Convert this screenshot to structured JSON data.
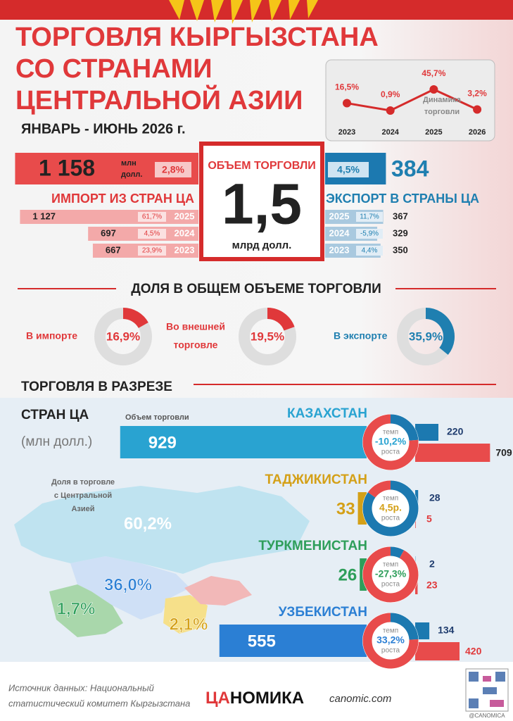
{
  "header": {
    "title_lines": [
      "ТОРГОВЛЯ КЫРГЫЗСТАНА",
      "СО СТРАНАМИ",
      "ЦЕНТРАЛЬНОЙ АЗИИ"
    ],
    "period": "ЯНВАРЬ - ИЮНЬ 2026 г."
  },
  "dynamics": {
    "label_lines": [
      "Динамика",
      "торговли"
    ],
    "x": [
      "2023",
      "2024",
      "2025",
      "2026"
    ],
    "values": [
      16.5,
      0.9,
      45.7,
      3.2
    ],
    "value_labels": [
      "16,5%",
      "0,9%",
      "45,7%",
      "3,2%"
    ]
  },
  "total": {
    "label": "ОБЪЕМ ТОРГОВЛИ",
    "value": "1,5",
    "unit": "млрд долл."
  },
  "imports": {
    "label": "ИМПОРТ ИЗ СТРАН ЦА",
    "unit_lines": [
      "млн",
      "долл."
    ],
    "current": {
      "value": 1158,
      "value_label": "1 158",
      "growth": "2,8%"
    },
    "history": [
      {
        "year": "2025",
        "value": 1127,
        "value_label": "1 127",
        "growth": "61,7%"
      },
      {
        "year": "2024",
        "value": 697,
        "growth": "4,5%"
      },
      {
        "year": "2023",
        "value": 667,
        "growth": "23,9%"
      }
    ]
  },
  "exports": {
    "label": "ЭКСПОРТ В СТРАНЫ ЦА",
    "current": {
      "value": 384,
      "growth": "4,5%"
    },
    "history": [
      {
        "year": "2025",
        "value": 367,
        "growth": "11,7%"
      },
      {
        "year": "2024",
        "value": 329,
        "growth": "-5,9%"
      },
      {
        "year": "2023",
        "value": 350,
        "growth": "4,4%"
      }
    ]
  },
  "share": {
    "title": "ДОЛЯ В ОБЩЕМ ОБЪЕМЕ ТОРГОВЛИ",
    "items": [
      {
        "label_lines": [
          "В импорте"
        ],
        "value": 16.9,
        "value_label": "16,9%"
      },
      {
        "label_lines": [
          "Во внешней",
          "торговле"
        ],
        "value": 19.5,
        "value_label": "19,5%"
      },
      {
        "label_lines": [
          "В экспорте"
        ],
        "value": 35.9,
        "value_label": "35,9%"
      }
    ]
  },
  "countries": {
    "title_lines": [
      "ТОРГОВЛЯ В РАЗРЕЗЕ",
      "СТРАН ЦА"
    ],
    "unit": "(млн долл.)",
    "volume_label": "Объем торговли",
    "growth_top": "темп",
    "growth_bottom": "роста",
    "items": [
      {
        "name": "КАЗАХСТАН",
        "total": 929,
        "growth": "-10,2%",
        "export": 220,
        "import": 709
      },
      {
        "name": "ТАДЖИКИСТАН",
        "total": 33,
        "growth": "4,5р.",
        "export": 28,
        "import": 5
      },
      {
        "name": "ТУРКМЕНИСТАН",
        "total": 26,
        "growth": "-27,3%",
        "export": 2,
        "import": 23
      },
      {
        "name": "УЗБЕКИСТАН",
        "total": 555,
        "growth": "33,2%",
        "export": 134,
        "import": 420
      }
    ]
  },
  "map": {
    "label_lines": [
      "Доля в торговле",
      "с Центральной",
      "Азией"
    ],
    "shares": [
      "60,2%",
      "36,0%",
      "1,7%",
      "2,1%"
    ]
  },
  "footer": {
    "source_lines": [
      "Источник данных: Национальный",
      "статистический комитет Кыргызстана"
    ],
    "logo_a": "ЦА",
    "logo_b": "НОМИКА",
    "site": "canomic.com",
    "handle": "@CANOMICA"
  }
}
